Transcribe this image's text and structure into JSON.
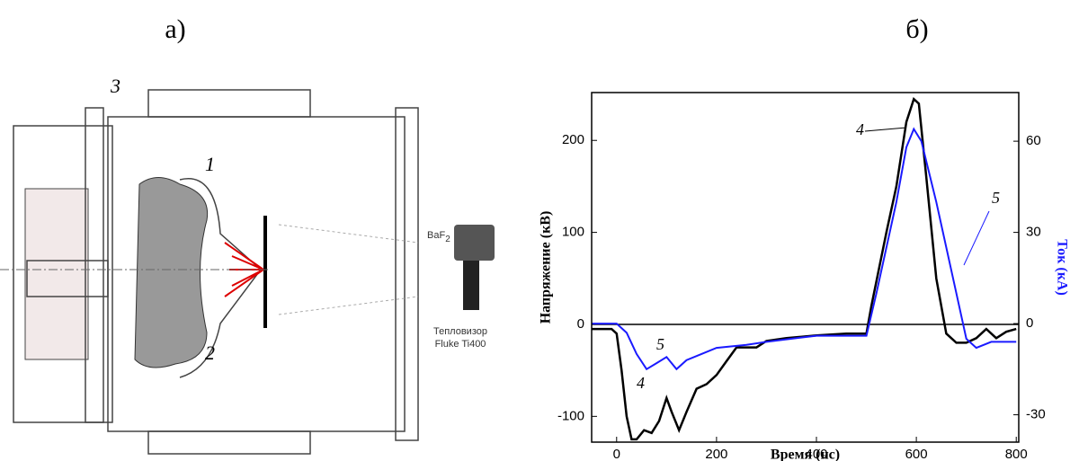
{
  "panel_labels": {
    "a": "а)",
    "b": "б)"
  },
  "diagram": {
    "labels": {
      "part1": "1",
      "part2": "2",
      "part3": "3",
      "window": "BaF",
      "window_sub": "2",
      "camera_line1": "Тепловизор",
      "camera_line2": "Fluke Ti400"
    }
  },
  "chart_data": {
    "type": "line",
    "x_label": "Время (нс)",
    "y_label": "Напряжение (кВ)",
    "y2_label": "Ток (кА)",
    "xlim": [
      -50,
      805
    ],
    "xticks": [
      0,
      200,
      400,
      600,
      800
    ],
    "ylim": [
      -128,
      252
    ],
    "yticks": [
      -100,
      0,
      100,
      200
    ],
    "y2lim": [
      -39,
      76
    ],
    "y2ticks": [
      -30,
      0,
      30,
      60
    ],
    "annotations": [
      "4",
      "4",
      "5",
      "5"
    ],
    "series": [
      {
        "name": "4",
        "color": "#000000",
        "x": [
          -50,
          -10,
          0,
          10,
          20,
          30,
          40,
          55,
          70,
          85,
          100,
          110,
          125,
          140,
          160,
          180,
          200,
          220,
          240,
          280,
          300,
          340,
          400,
          460,
          500,
          510,
          540,
          560,
          580,
          595,
          605,
          620,
          640,
          660,
          680,
          700,
          720,
          740,
          760,
          780,
          800
        ],
        "values": [
          -5,
          -5,
          -10,
          -50,
          -100,
          -125,
          -125,
          -115,
          -118,
          -105,
          -80,
          -95,
          -115,
          -95,
          -70,
          -65,
          -55,
          -40,
          -25,
          -25,
          -18,
          -15,
          -12,
          -10,
          -10,
          20,
          100,
          150,
          220,
          245,
          240,
          160,
          50,
          -10,
          -20,
          -20,
          -15,
          -5,
          -15,
          -8,
          -5
        ]
      },
      {
        "name": "5",
        "color": "#1a1aff",
        "axis": "y2",
        "x": [
          -50,
          0,
          20,
          40,
          60,
          80,
          100,
          120,
          140,
          170,
          200,
          260,
          300,
          400,
          500,
          520,
          560,
          580,
          595,
          610,
          640,
          680,
          700,
          720,
          750,
          800
        ],
        "values": [
          0,
          0,
          -3,
          -10,
          -15,
          -13,
          -11,
          -15,
          -12,
          -10,
          -8,
          -7,
          -6,
          -4,
          -4,
          10,
          40,
          58,
          64,
          60,
          40,
          10,
          -5,
          -8,
          -6,
          -6
        ]
      }
    ]
  }
}
